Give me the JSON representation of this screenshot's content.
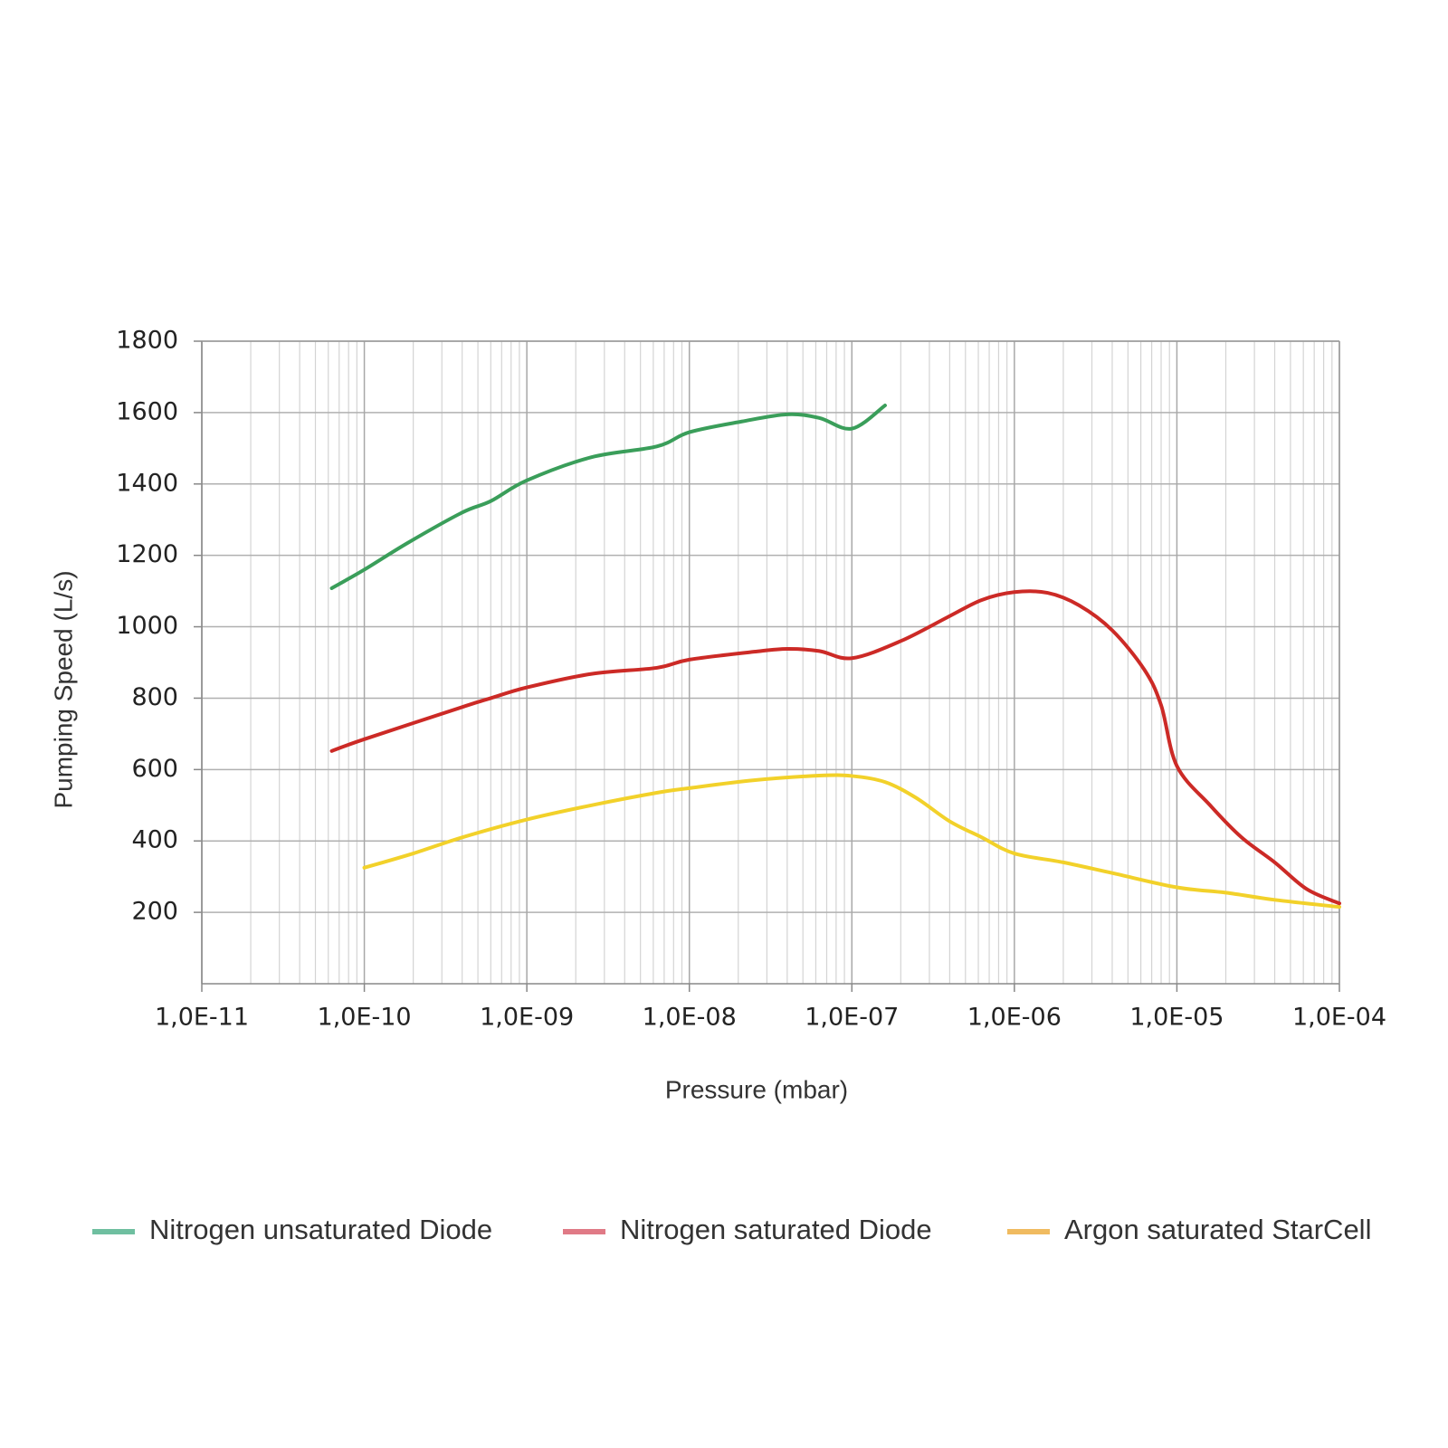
{
  "chart_data": {
    "type": "line",
    "x_label": "Pressure (mbar)",
    "y_label": "Pumping Speed (L/s)",
    "xscale": "log",
    "grid": true,
    "xlim": [
      1e-11,
      0.0001
    ],
    "xticks": [
      {
        "value": 1e-11,
        "label": "1,0E-11"
      },
      {
        "value": 1e-10,
        "label": "1,0E-10"
      },
      {
        "value": 1e-09,
        "label": "1,0E-09"
      },
      {
        "value": 1e-08,
        "label": "1,0E-08"
      },
      {
        "value": 1e-07,
        "label": "1,0E-07"
      },
      {
        "value": 1e-06,
        "label": "1,0E-06"
      },
      {
        "value": 1e-05,
        "label": "1,0E-05"
      },
      {
        "value": 0.0001,
        "label": "1,0E-04"
      }
    ],
    "ylim": [
      0,
      1800
    ],
    "yticks": [
      200,
      400,
      600,
      800,
      1000,
      1200,
      1400,
      1600,
      1800
    ],
    "legend_position": "bottom",
    "series": [
      {
        "name": "Nitrogen unsaturated Diode",
        "color": "#3a9e5a",
        "legend_color": "#6fbfa0",
        "x": [
          6.3e-11,
          1e-10,
          1.85e-10,
          4e-10,
          6e-10,
          1e-09,
          2.5e-09,
          6.3e-09,
          1e-08,
          2.1e-08,
          4e-08,
          6.3e-08,
          1e-07,
          1.6e-07
        ],
        "values": [
          1108,
          1160,
          1235,
          1320,
          1352,
          1410,
          1475,
          1505,
          1545,
          1575,
          1595,
          1585,
          1555,
          1620
        ]
      },
      {
        "name": "Nitrogen saturated Diode",
        "color": "#cc2a26",
        "legend_color": "#e07a86",
        "x": [
          6.3e-11,
          1e-10,
          4e-10,
          6e-10,
          1e-09,
          2.5e-09,
          6.3e-09,
          1e-08,
          2.5e-08,
          4e-08,
          6.3e-08,
          1e-07,
          2e-07,
          4e-07,
          6.3e-07,
          1e-06,
          1.6e-06,
          2.5e-06,
          4e-06,
          6.3e-06,
          8e-06,
          1e-05,
          1.6e-05,
          2.5e-05,
          4e-05,
          6.3e-05,
          0.0001
        ],
        "values": [
          652,
          685,
          775,
          800,
          830,
          868,
          885,
          908,
          930,
          938,
          932,
          912,
          960,
          1030,
          1075,
          1097,
          1095,
          1060,
          990,
          880,
          780,
          610,
          500,
          410,
          340,
          265,
          225
        ]
      },
      {
        "name": "Argon saturated StarCell",
        "color": "#f2d12a",
        "legend_color": "#f0bb60",
        "x": [
          1e-10,
          2e-10,
          4e-10,
          1e-09,
          2.5e-09,
          6.3e-09,
          1e-08,
          2.5e-08,
          6.3e-08,
          1e-07,
          1.6e-07,
          2.5e-07,
          4e-07,
          6.3e-07,
          1e-06,
          2e-06,
          4e-06,
          1e-05,
          2e-05,
          4e-05,
          0.0001
        ],
        "values": [
          325,
          365,
          410,
          460,
          500,
          535,
          548,
          570,
          583,
          582,
          565,
          520,
          455,
          410,
          365,
          340,
          310,
          270,
          255,
          235,
          215
        ]
      }
    ]
  }
}
